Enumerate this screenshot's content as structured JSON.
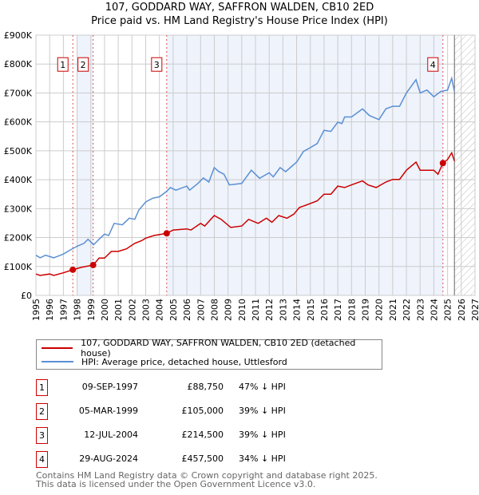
{
  "colors": {
    "property": "#cc0000",
    "hpi": "#5b8fd4",
    "shade": "#eef3fc",
    "grid": "#cccccc"
  },
  "chart_data": {
    "type": "line",
    "title": "107, GODDARD WAY, SAFFRON WALDEN, CB10 2ED",
    "subtitle": "Price paid vs. HM Land Registry's House Price Index (HPI)",
    "xlim": [
      1995,
      2027
    ],
    "ylim": [
      0,
      900000
    ],
    "x_ticks": [
      "1995",
      "1996",
      "1997",
      "1998",
      "1999",
      "2000",
      "2001",
      "2002",
      "2003",
      "2004",
      "2005",
      "2006",
      "2007",
      "2008",
      "2009",
      "2010",
      "2011",
      "2012",
      "2013",
      "2014",
      "2015",
      "2016",
      "2017",
      "2018",
      "2019",
      "2020",
      "2021",
      "2022",
      "2023",
      "2024",
      "2025",
      "2026",
      "2027"
    ],
    "y_ticks": [
      {
        "v": 0,
        "label": "£0"
      },
      {
        "v": 100000,
        "label": "£100K"
      },
      {
        "v": 200000,
        "label": "£200K"
      },
      {
        "v": 300000,
        "label": "£300K"
      },
      {
        "v": 400000,
        "label": "£400K"
      },
      {
        "v": 500000,
        "label": "£500K"
      },
      {
        "v": 600000,
        "label": "£600K"
      },
      {
        "v": 700000,
        "label": "£700K"
      },
      {
        "v": 800000,
        "label": "£800K"
      },
      {
        "v": 900000,
        "label": "£900K"
      }
    ],
    "grid": true,
    "forecast_from": 2025.5,
    "series": [
      {
        "name": "107, GODDARD WAY, SAFFRON WALDEN, CB10 2ED (detached house)",
        "color": "#cc0000",
        "x": [
          1995,
          1995.3,
          1996,
          1996.3,
          1997,
          1997.69,
          1998.3,
          1999.17,
          1999.6,
          2000,
          2000.5,
          2001,
          2001.6,
          2002.2,
          2002.7,
          2003,
          2003.6,
          2004.53,
          2005,
          2006,
          2006.3,
          2007,
          2007.3,
          2008,
          2008.5,
          2009.2,
          2010,
          2010.5,
          2011.2,
          2011.8,
          2012.2,
          2012.7,
          2013.3,
          2013.8,
          2014.2,
          2014.5,
          2015.5,
          2016,
          2016.5,
          2017,
          2017.5,
          2018,
          2018.8,
          2019.2,
          2019.8,
          2020.5,
          2021,
          2021.5,
          2022,
          2022.7,
          2023,
          2024,
          2024.3,
          2024.66,
          2025,
          2025.3,
          2025.5
        ],
        "y": [
          74,
          69,
          74,
          69,
          78,
          88.75,
          97,
          105,
          129,
          129,
          152,
          152,
          161,
          180,
          189,
          198,
          207,
          214.5,
          226,
          230,
          226,
          249,
          240,
          276,
          263,
          235,
          240,
          263,
          249,
          267,
          253,
          276,
          267,
          281,
          304,
          309,
          327,
          350,
          350,
          378,
          373,
          382,
          396,
          382,
          373,
          392,
          401,
          401,
          433,
          461,
          433,
          433,
          419,
          457.5,
          470,
          493,
          465
        ],
        "y_unit": "thousand GBP"
      },
      {
        "name": "HPI: Average price, detached house, Uttlesford",
        "color": "#5b8fd4",
        "x": [
          1995,
          1995.3,
          1995.7,
          1996.3,
          1997,
          1997.5,
          1998,
          1998.5,
          1998.8,
          1999.2,
          1999.6,
          2000,
          2000.3,
          2000.7,
          2001.3,
          2001.8,
          2002.2,
          2002.5,
          2003,
          2003.5,
          2004,
          2004.5,
          2004.8,
          2005.2,
          2006,
          2006.2,
          2006.8,
          2007.2,
          2007.6,
          2008,
          2008.3,
          2008.7,
          2009.1,
          2010,
          2010.7,
          2011.3,
          2012,
          2012.3,
          2012.8,
          2013.2,
          2014,
          2014.5,
          2015,
          2015.5,
          2016,
          2016.5,
          2017,
          2017.3,
          2017.5,
          2018,
          2018.8,
          2019.3,
          2020,
          2020.5,
          2021,
          2021.5,
          2022,
          2022.7,
          2023,
          2023.5,
          2024,
          2024.5,
          2025,
          2025.3,
          2025.5
        ],
        "y": [
          139,
          130,
          139,
          130,
          143,
          157,
          170,
          180,
          194,
          175,
          194,
          212,
          207,
          249,
          244,
          267,
          263,
          295,
          323,
          336,
          341,
          359,
          373,
          364,
          378,
          364,
          387,
          406,
          392,
          442,
          429,
          419,
          382,
          387,
          433,
          405,
          424,
          410,
          442,
          428,
          461,
          498,
          511,
          525,
          571,
          567,
          599,
          594,
          617,
          617,
          645,
          622,
          608,
          645,
          654,
          654,
          700,
          746,
          700,
          710,
          687,
          705,
          710,
          751,
          705
        ],
        "y_unit": "thousand GBP"
      }
    ],
    "sales": [
      {
        "n": "1",
        "x": 1997.69,
        "date": "09-SEP-1997",
        "price": "£88,750",
        "value": 88.75,
        "hpi": "47% ↓ HPI"
      },
      {
        "n": "2",
        "x": 1999.17,
        "date": "05-MAR-1999",
        "price": "£105,000",
        "value": 105,
        "hpi": "39% ↓ HPI"
      },
      {
        "n": "3",
        "x": 2004.53,
        "date": "12-JUL-2004",
        "price": "£214,500",
        "value": 214.5,
        "hpi": "39% ↓ HPI"
      },
      {
        "n": "4",
        "x": 2024.66,
        "date": "29-AUG-2024",
        "price": "£457,500",
        "value": 457.5,
        "hpi": "34% ↓ HPI"
      }
    ],
    "legend_position": "below"
  },
  "footer": {
    "line1": "Contains HM Land Registry data © Crown copyright and database right 2025.",
    "line2": "This data is licensed under the Open Government Licence v3.0."
  }
}
